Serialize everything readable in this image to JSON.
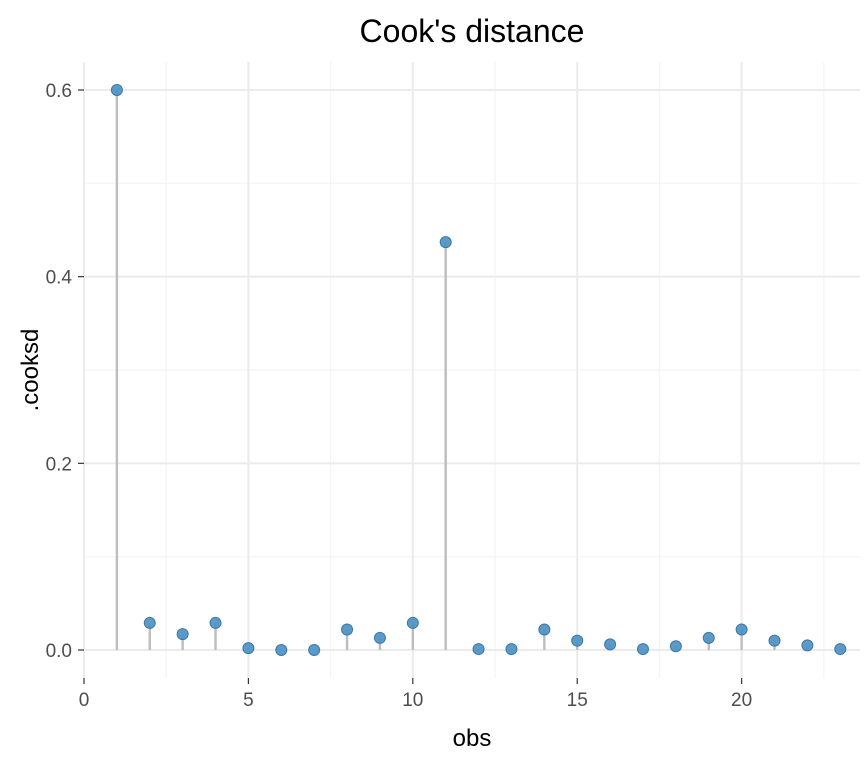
{
  "chart_data": {
    "type": "scatter",
    "style": "lollipop",
    "title": "Cook's distance",
    "xlabel": "obs",
    "ylabel": ".cooksd",
    "xlim": [
      0,
      23.6
    ],
    "ylim": [
      -0.03,
      0.63
    ],
    "xticks": [
      0,
      5,
      10,
      15,
      20
    ],
    "xtick_labels": [
      "0",
      "5",
      "10",
      "15",
      "20"
    ],
    "yticks": [
      0.0,
      0.2,
      0.4,
      0.6
    ],
    "ytick_labels": [
      "0.0",
      "0.2",
      "0.4",
      "0.6"
    ],
    "grid": true,
    "colors": {
      "point": "#4a90c2",
      "stem": "#bdbdbd"
    },
    "x": [
      1,
      2,
      3,
      4,
      5,
      6,
      7,
      8,
      9,
      10,
      11,
      12,
      13,
      14,
      15,
      16,
      17,
      18,
      19,
      20,
      21,
      22,
      23
    ],
    "y": [
      0.6,
      0.029,
      0.017,
      0.029,
      0.002,
      0.0,
      0.0,
      0.022,
      0.013,
      0.029,
      0.437,
      0.001,
      0.001,
      0.022,
      0.01,
      0.006,
      0.001,
      0.004,
      0.013,
      0.022,
      0.01,
      0.005,
      0.001
    ]
  }
}
